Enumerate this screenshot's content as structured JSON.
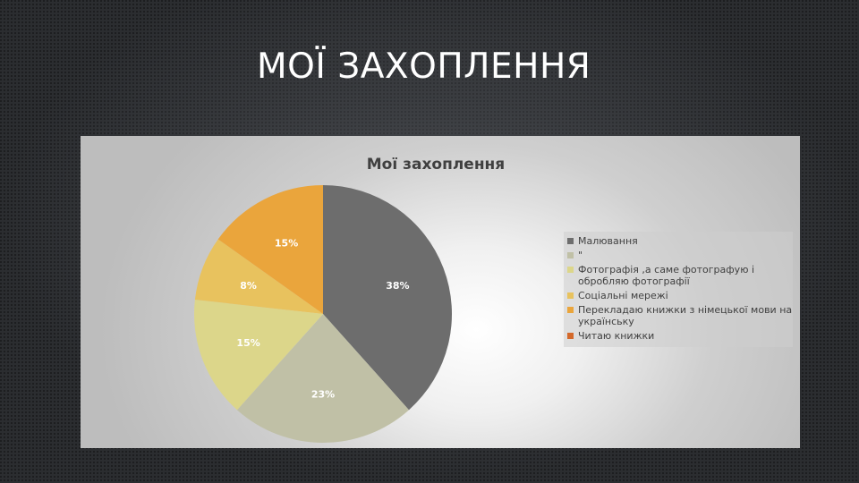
{
  "slide": {
    "title": "МОЇ ЗАХОПЛЕННЯ"
  },
  "chart_data": {
    "type": "pie",
    "title": "Мої захоплення",
    "legend_position": "right",
    "slices": [
      {
        "name": " Малювання",
        "value": 38,
        "label": "38%",
        "color": "#6d6d6d"
      },
      {
        "name": "\"",
        "value": 23,
        "label": "23%",
        "color": "#c0c0a6"
      },
      {
        "name": "Фотографія ,а саме фотографую і обробляю фотографії",
        "value": 15,
        "label": "15%",
        "color": "#dcd68a"
      },
      {
        "name": "Соціальні мережі",
        "value": 8,
        "label": "8%",
        "color": "#e8c25e"
      },
      {
        "name": "Перекладаю книжки з німецької мови на українську",
        "value": 15,
        "label": "15%",
        "color": "#eaa53c"
      },
      {
        "name": "Читаю книжки",
        "value": 0,
        "label": "",
        "color": "#d4692b"
      }
    ]
  }
}
